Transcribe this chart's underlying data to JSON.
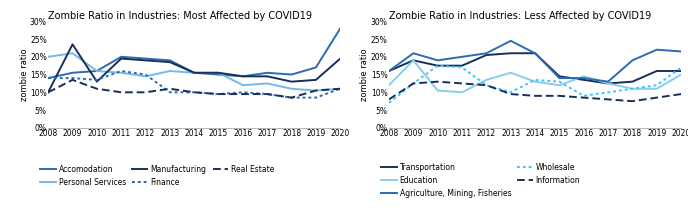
{
  "years": [
    2008,
    2009,
    2010,
    2011,
    2012,
    2013,
    2014,
    2015,
    2016,
    2017,
    2018,
    2019,
    2020
  ],
  "title1": "Zombie Ratio in Industries: Most Affected by COVID19",
  "title2": "Zombie Ratio in Industries: Less Affected by COVID19",
  "ylabel": "zombie ratio",
  "ylim": [
    0,
    0.3
  ],
  "yticks": [
    0,
    0.05,
    0.1,
    0.15,
    0.2,
    0.25,
    0.3
  ],
  "panel1": {
    "Accomodation": {
      "values": [
        0.14,
        0.155,
        0.16,
        0.2,
        0.195,
        0.19,
        0.155,
        0.15,
        0.145,
        0.155,
        0.15,
        0.17,
        0.28
      ],
      "color": "#2b6cb0",
      "linestyle": "solid",
      "linewidth": 1.4
    },
    "Personal Services": {
      "values": [
        0.2,
        0.21,
        0.16,
        0.155,
        0.145,
        0.16,
        0.155,
        0.155,
        0.12,
        0.125,
        0.11,
        0.105,
        0.11
      ],
      "color": "#74b9e8",
      "linestyle": "solid",
      "linewidth": 1.4
    },
    "Manufacturing": {
      "values": [
        0.1,
        0.235,
        0.13,
        0.195,
        0.19,
        0.185,
        0.155,
        0.155,
        0.145,
        0.145,
        0.13,
        0.135,
        0.195
      ],
      "color": "#1a2e5a",
      "linestyle": "solid",
      "linewidth": 1.4
    },
    "Finance": {
      "values": [
        0.14,
        0.14,
        0.135,
        0.16,
        0.15,
        0.1,
        0.1,
        0.095,
        0.1,
        0.095,
        0.085,
        0.085,
        0.11
      ],
      "color": "#2b6cb0",
      "linestyle": "dotted",
      "linewidth": 1.4
    },
    "Real Estate": {
      "values": [
        0.1,
        0.135,
        0.11,
        0.1,
        0.1,
        0.11,
        0.1,
        0.095,
        0.095,
        0.095,
        0.085,
        0.105,
        0.11
      ],
      "color": "#1a2e5a",
      "linestyle": "dashed",
      "linewidth": 1.4
    }
  },
  "panel2": {
    "Transportation": {
      "values": [
        0.16,
        0.19,
        0.175,
        0.175,
        0.205,
        0.21,
        0.21,
        0.145,
        0.135,
        0.125,
        0.13,
        0.16,
        0.16
      ],
      "color": "#1a2e5a",
      "linestyle": "solid",
      "linewidth": 1.4
    },
    "Education": {
      "values": [
        0.12,
        0.19,
        0.105,
        0.1,
        0.135,
        0.155,
        0.13,
        0.12,
        0.145,
        0.125,
        0.11,
        0.11,
        0.15
      ],
      "color": "#87ceeb",
      "linestyle": "solid",
      "linewidth": 1.4
    },
    "Agriculture, Mining, Fisheries": {
      "values": [
        0.16,
        0.21,
        0.19,
        0.2,
        0.21,
        0.245,
        0.21,
        0.14,
        0.14,
        0.13,
        0.19,
        0.22,
        0.215
      ],
      "color": "#2b6cb0",
      "linestyle": "solid",
      "linewidth": 1.4
    },
    "Wholesale": {
      "values": [
        0.07,
        0.125,
        0.175,
        0.17,
        0.12,
        0.1,
        0.135,
        0.13,
        0.09,
        0.1,
        0.11,
        0.12,
        0.17
      ],
      "color": "#40c4ff",
      "linestyle": "dotted",
      "linewidth": 1.4
    },
    "Information": {
      "values": [
        0.08,
        0.125,
        0.13,
        0.125,
        0.12,
        0.095,
        0.09,
        0.09,
        0.085,
        0.08,
        0.075,
        0.085,
        0.095
      ],
      "color": "#1a2e5a",
      "linestyle": "dashed",
      "linewidth": 1.4
    }
  },
  "background_color": "#ffffff",
  "title_fontsize": 7.0,
  "axis_fontsize": 6.0,
  "tick_fontsize": 5.5,
  "legend_fontsize": 5.5
}
